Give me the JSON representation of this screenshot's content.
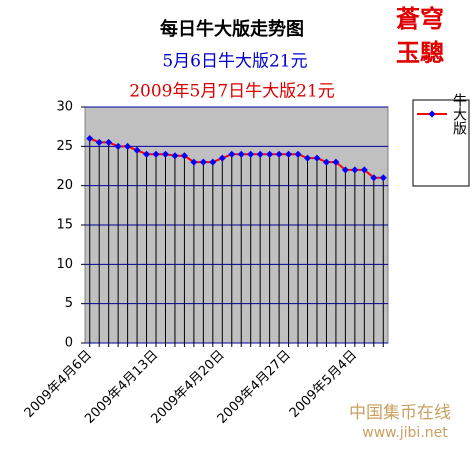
{
  "chart_data": {
    "type": "line",
    "title": "每日牛大版走势图",
    "subtitle": "5月6日牛大版21元",
    "subtitle2": "2009年5月7日牛大版21元",
    "logo": [
      "蒼穹",
      "玉驄"
    ],
    "watermark": [
      "中国集币在线",
      "www.jibi.net"
    ],
    "categories": [
      "2009年4月6日",
      null,
      null,
      null,
      null,
      null,
      null,
      "2009年4月13日",
      null,
      null,
      null,
      null,
      null,
      null,
      "2009年4月20日",
      null,
      null,
      null,
      null,
      null,
      null,
      "2009年4月27日",
      null,
      null,
      null,
      null,
      null,
      null,
      "2009年5月4日",
      null,
      null,
      null
    ],
    "series": [
      {
        "name": "牛大版",
        "color": "#ff0000",
        "marker_color": "#0000ff",
        "values": [
          26,
          25.5,
          25.5,
          25,
          25,
          24.5,
          24,
          24,
          24,
          23.8,
          23.8,
          23,
          23,
          23,
          23.5,
          24,
          24,
          24,
          24,
          24,
          24,
          24,
          24,
          23.5,
          23.5,
          23,
          23,
          22,
          22,
          22,
          21,
          21
        ]
      }
    ],
    "ylim": [
      0,
      30
    ],
    "yticks": [
      0,
      5,
      10,
      15,
      20,
      25,
      30
    ],
    "grid": true,
    "legend": "right"
  }
}
